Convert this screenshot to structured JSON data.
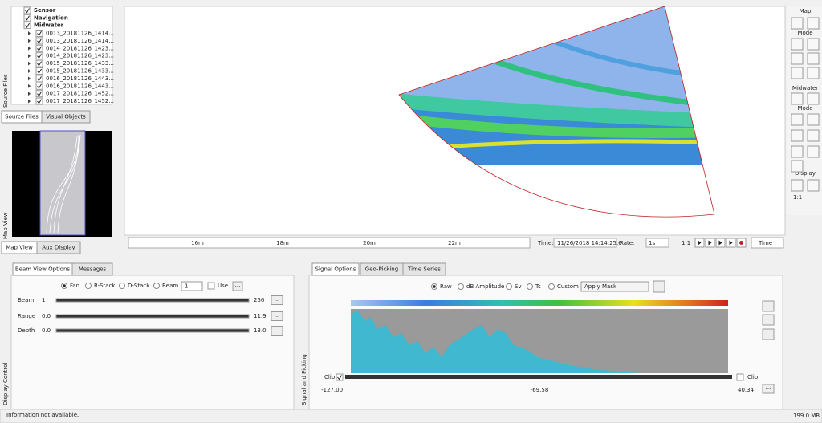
{
  "source_files": {
    "label": "Source Files",
    "tree": [
      "Sensor",
      "Navigation",
      "Midwater"
    ],
    "files": [
      "0013_20181126_1414...",
      "0013_20181126_1414...",
      "0014_20181126_1423...",
      "0014_20181126_1423...",
      "0015_20181126_1433...",
      "0015_20181126_1433...",
      "0016_20181126_1443...",
      "0016_20181126_1443...",
      "0017_20181126_1452...",
      "0017_20181126_1452..."
    ]
  },
  "left_tabs": [
    "Source Files",
    "Visual Objects"
  ],
  "map_view": {
    "label": "Map View",
    "tabs": [
      "Map View",
      "Aux Display"
    ]
  },
  "timeline": {
    "ticks": [
      "16m",
      "18m",
      "20m",
      "22m"
    ],
    "time_label": "Time:",
    "time": "11/26/2018 14:14:25.6",
    "rate_label": "Rate:",
    "rate": "1s",
    "ratio": "1:1",
    "mode": "Time"
  },
  "toolbar": {
    "sections": [
      "Map",
      "Mode",
      "Midwater",
      "Mode",
      "Display"
    ],
    "ratio": "1:1"
  },
  "display_control": {
    "label": "Display Control",
    "tabs": [
      "Beam View Options",
      "Messages"
    ],
    "modes": [
      "Fan",
      "R-Stack",
      "D-Stack",
      "Beam"
    ],
    "beam_number": "1",
    "use": "Use",
    "more": "...",
    "rows": [
      {
        "name": "Beam",
        "min": "1",
        "max": "256"
      },
      {
        "name": "Range",
        "min": "0.0",
        "max": "11.9"
      },
      {
        "name": "Depth",
        "min": "0.0",
        "max": "13.0"
      }
    ]
  },
  "signal": {
    "label": "Signal and Picking",
    "tabs": [
      "Signal Options",
      "Geo-Picking",
      "Time Series"
    ],
    "modes": [
      "Raw",
      "dB Amplitude",
      "Sv",
      "Ts",
      "Custom"
    ],
    "mask": "Apply Mask",
    "clip_left": "Clip",
    "clip_right": "Clip",
    "scale": [
      "-127.00",
      "-69.58",
      "40.34"
    ],
    "more": "..."
  },
  "status": {
    "message": "Information not available.",
    "memory": "199.0 MB"
  }
}
